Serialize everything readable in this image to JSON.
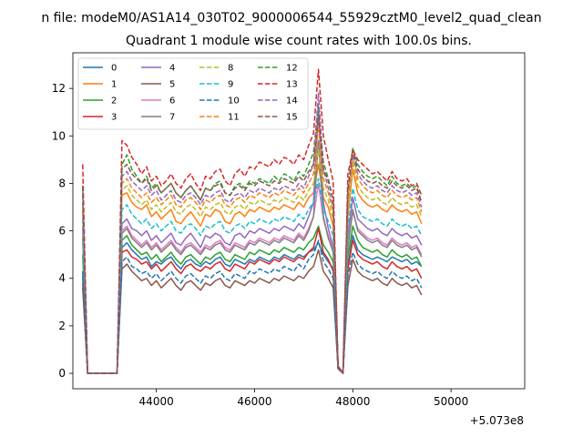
{
  "suptitle": "n file: modeM0/AS1A14_030T02_9000006544_55929cztM0_level2_quad_clean",
  "chart_data": {
    "type": "line",
    "title": "Quadrant 1 module wise count rates with 100.0s bins.",
    "xlabel": "",
    "ylabel": "",
    "x_offset_label": "+5.073e8",
    "xlim": [
      42300,
      51500
    ],
    "ylim": [
      -0.65,
      13.5
    ],
    "xticks": [
      44000,
      46000,
      48000,
      50000
    ],
    "xtick_labels": [
      "44000",
      "46000",
      "48000",
      "50000"
    ],
    "yticks": [
      0,
      2,
      4,
      6,
      8,
      10,
      12
    ],
    "ytick_labels": [
      "0",
      "2",
      "4",
      "6",
      "8",
      "10",
      "12"
    ],
    "grid": false,
    "legend_position": "top-left",
    "x_start": 42500,
    "x_step": 100,
    "series": [
      {
        "name": "0",
        "color": "#1f77b4",
        "dash": "solid",
        "values": [
          4.1,
          0,
          0,
          0,
          0,
          0,
          0,
          0,
          5.3,
          5.5,
          5.2,
          5.0,
          4.8,
          4.9,
          4.5,
          4.7,
          4.6,
          4.8,
          4.9,
          4.6,
          4.4,
          4.7,
          4.8,
          4.6,
          4.5,
          4.7,
          4.6,
          4.8,
          4.9,
          4.6,
          4.5,
          4.8,
          4.7,
          4.6,
          4.8,
          4.7,
          4.9,
          4.8,
          4.7,
          4.9,
          4.8,
          5.0,
          4.9,
          4.8,
          5.0,
          4.9,
          5.1,
          5.2,
          5.5,
          5.0,
          4.7,
          4.4,
          0.2,
          0,
          4.5,
          5.8,
          5.2,
          5.0,
          4.9,
          4.8,
          4.9,
          4.8,
          4.7,
          4.9,
          4.8,
          4.7,
          4.8,
          4.6,
          4.7,
          4.5
        ]
      },
      {
        "name": "1",
        "color": "#ff7f0e",
        "dash": "solid",
        "values": [
          6.8,
          0,
          0,
          0,
          0,
          0,
          0,
          0,
          7.5,
          7.6,
          7.2,
          7.0,
          6.9,
          7.1,
          6.6,
          6.8,
          6.5,
          6.7,
          6.9,
          6.4,
          6.3,
          6.6,
          6.8,
          6.5,
          6.2,
          6.7,
          6.6,
          6.9,
          6.8,
          6.4,
          6.3,
          6.7,
          6.8,
          6.6,
          6.9,
          6.8,
          7.0,
          6.9,
          6.8,
          7.0,
          6.9,
          7.1,
          7.0,
          6.9,
          7.2,
          7.0,
          7.4,
          7.6,
          8.8,
          7.4,
          7.0,
          6.2,
          0.3,
          0,
          6.6,
          8.6,
          7.6,
          7.3,
          7.1,
          7.0,
          7.1,
          6.9,
          6.8,
          7.1,
          6.9,
          6.8,
          6.9,
          6.7,
          6.8,
          6.3
        ]
      },
      {
        "name": "2",
        "color": "#2ca02c",
        "dash": "solid",
        "values": [
          5.0,
          0,
          0,
          0,
          0,
          0,
          0,
          0,
          5.6,
          5.8,
          5.4,
          5.2,
          5.0,
          5.1,
          4.8,
          5.0,
          4.7,
          4.9,
          5.1,
          4.8,
          4.6,
          4.9,
          5.0,
          4.8,
          4.6,
          4.9,
          4.8,
          5.0,
          5.1,
          4.8,
          4.7,
          5.0,
          4.9,
          4.8,
          5.1,
          5.0,
          5.2,
          5.1,
          5.0,
          5.2,
          5.1,
          5.3,
          5.2,
          5.1,
          5.3,
          5.2,
          5.5,
          5.7,
          6.2,
          5.4,
          5.1,
          4.7,
          0.2,
          0,
          4.9,
          6.2,
          5.6,
          5.3,
          5.2,
          5.1,
          5.2,
          5.0,
          4.9,
          5.2,
          5.0,
          4.9,
          5.0,
          4.8,
          4.9,
          4.5
        ]
      },
      {
        "name": "3",
        "color": "#d62728",
        "dash": "solid",
        "values": [
          3.8,
          0,
          0,
          0,
          0,
          0,
          0,
          0,
          5.1,
          5.2,
          4.9,
          4.8,
          4.6,
          4.7,
          4.4,
          4.6,
          4.3,
          4.5,
          4.7,
          4.4,
          4.2,
          4.5,
          4.6,
          4.4,
          4.3,
          4.5,
          4.4,
          4.6,
          4.7,
          4.4,
          4.3,
          4.6,
          4.5,
          4.4,
          4.7,
          4.6,
          4.8,
          4.7,
          4.6,
          4.8,
          4.7,
          4.9,
          4.8,
          4.7,
          4.9,
          4.8,
          5.1,
          5.3,
          6.1,
          5.1,
          4.8,
          4.3,
          0.2,
          0,
          4.4,
          5.6,
          5.0,
          4.8,
          4.7,
          4.6,
          4.7,
          4.5,
          4.4,
          4.7,
          4.5,
          4.4,
          4.5,
          4.3,
          4.4,
          4.0
        ]
      },
      {
        "name": "4",
        "color": "#9467bd",
        "dash": "solid",
        "values": [
          6.2,
          0,
          0,
          0,
          0,
          0,
          0,
          0,
          6.3,
          6.5,
          6.1,
          6.0,
          5.8,
          6.0,
          5.6,
          5.8,
          5.5,
          5.7,
          5.9,
          5.5,
          5.4,
          5.7,
          5.9,
          5.6,
          5.3,
          5.8,
          5.7,
          5.9,
          5.8,
          5.5,
          5.4,
          5.8,
          5.9,
          5.7,
          6.0,
          5.9,
          6.1,
          6.0,
          5.9,
          6.1,
          6.0,
          6.2,
          6.1,
          6.0,
          6.3,
          6.1,
          6.6,
          7.2,
          11.2,
          7.2,
          6.1,
          5.3,
          0.3,
          0,
          5.8,
          7.4,
          6.5,
          6.3,
          6.1,
          6.0,
          6.1,
          5.9,
          5.8,
          6.1,
          5.9,
          5.8,
          5.9,
          5.7,
          5.8,
          5.4
        ]
      },
      {
        "name": "5",
        "color": "#8c564b",
        "dash": "solid",
        "values": [
          3.6,
          0,
          0,
          0,
          0,
          0,
          0,
          0,
          4.4,
          4.6,
          4.3,
          4.1,
          3.9,
          4.0,
          3.7,
          3.9,
          3.6,
          3.8,
          4.0,
          3.7,
          3.5,
          3.8,
          3.9,
          3.7,
          3.5,
          3.8,
          3.7,
          3.9,
          4.0,
          3.7,
          3.6,
          3.9,
          3.8,
          3.7,
          3.9,
          3.8,
          4.0,
          3.9,
          3.8,
          4.0,
          3.9,
          4.1,
          4.0,
          3.9,
          4.1,
          4.0,
          4.3,
          4.5,
          5.2,
          4.3,
          4.0,
          3.6,
          0.2,
          0,
          3.7,
          4.8,
          4.3,
          4.1,
          4.0,
          3.9,
          4.0,
          3.8,
          3.7,
          4.0,
          3.8,
          3.7,
          3.8,
          3.6,
          3.7,
          3.3
        ]
      },
      {
        "name": "6",
        "color": "#e377c2",
        "dash": "solid",
        "values": [
          6.0,
          0,
          0,
          0,
          0,
          0,
          0,
          0,
          6.0,
          6.2,
          5.8,
          5.6,
          5.4,
          5.6,
          5.3,
          5.5,
          5.2,
          5.4,
          5.6,
          5.3,
          5.1,
          5.4,
          5.5,
          5.3,
          5.1,
          5.4,
          5.3,
          5.5,
          5.6,
          5.3,
          5.2,
          5.5,
          5.4,
          5.3,
          5.6,
          5.5,
          5.7,
          5.6,
          5.5,
          5.7,
          5.6,
          5.8,
          5.7,
          5.6,
          5.9,
          5.7,
          6.1,
          6.6,
          8.0,
          6.5,
          5.8,
          5.2,
          0.3,
          0,
          5.4,
          6.8,
          6.1,
          5.9,
          5.7,
          5.6,
          5.7,
          5.5,
          5.4,
          5.7,
          5.5,
          5.4,
          5.5,
          5.3,
          5.4,
          5.0
        ]
      },
      {
        "name": "7",
        "color": "#7f7f7f",
        "dash": "solid",
        "values": [
          5.7,
          0,
          0,
          0,
          0,
          0,
          0,
          0,
          5.9,
          6.1,
          5.7,
          5.5,
          5.3,
          5.5,
          5.2,
          5.4,
          5.1,
          5.3,
          5.5,
          5.2,
          5.0,
          5.3,
          5.4,
          5.2,
          5.0,
          5.3,
          5.2,
          5.4,
          5.5,
          5.2,
          5.1,
          5.4,
          5.3,
          5.2,
          5.5,
          5.4,
          5.6,
          5.5,
          5.4,
          5.6,
          5.5,
          5.7,
          5.6,
          5.5,
          5.8,
          5.6,
          6.0,
          6.6,
          9.8,
          6.6,
          5.7,
          5.1,
          0.3,
          0,
          5.3,
          6.9,
          6.0,
          5.8,
          5.6,
          5.5,
          5.6,
          5.4,
          5.3,
          5.6,
          5.4,
          5.3,
          5.4,
          5.2,
          5.3,
          4.9
        ]
      },
      {
        "name": "8",
        "color": "#bcbd22",
        "dash": "dashed",
        "values": [
          7.0,
          0,
          0,
          0,
          0,
          0,
          0,
          0,
          7.7,
          7.9,
          7.5,
          7.3,
          7.1,
          7.3,
          6.9,
          7.1,
          6.8,
          7.0,
          7.2,
          6.8,
          6.7,
          7.0,
          7.1,
          6.9,
          6.6,
          7.0,
          6.9,
          7.1,
          7.2,
          6.8,
          6.7,
          7.0,
          7.1,
          6.9,
          7.2,
          7.1,
          7.3,
          7.2,
          7.1,
          7.3,
          7.2,
          7.4,
          7.3,
          7.2,
          7.5,
          7.3,
          7.7,
          8.0,
          9.4,
          7.8,
          7.3,
          6.5,
          0.3,
          0,
          6.9,
          8.9,
          7.9,
          7.6,
          7.4,
          7.3,
          7.4,
          7.2,
          7.1,
          7.4,
          7.2,
          7.1,
          7.2,
          7.0,
          7.1,
          6.6
        ]
      },
      {
        "name": "9",
        "color": "#17becf",
        "dash": "dashed",
        "values": [
          6.5,
          0,
          0,
          0,
          0,
          0,
          0,
          0,
          6.9,
          7.1,
          6.7,
          6.5,
          6.3,
          6.5,
          6.1,
          6.3,
          6.0,
          6.2,
          6.4,
          6.0,
          5.9,
          6.2,
          6.3,
          6.1,
          5.8,
          6.2,
          6.1,
          6.3,
          6.4,
          6.0,
          5.9,
          6.2,
          6.3,
          6.1,
          6.4,
          6.3,
          6.5,
          6.4,
          6.3,
          6.5,
          6.4,
          6.6,
          6.5,
          6.4,
          6.7,
          6.5,
          6.9,
          7.2,
          8.2,
          6.9,
          6.4,
          5.8,
          0.3,
          0,
          6.1,
          7.8,
          6.9,
          6.6,
          6.5,
          6.4,
          6.5,
          6.3,
          6.2,
          6.5,
          6.3,
          6.2,
          6.3,
          6.1,
          6.2,
          5.8
        ]
      },
      {
        "name": "10",
        "color": "#1f77b4",
        "dash": "dashed",
        "values": [
          4.3,
          0,
          0,
          0,
          0,
          0,
          0,
          0,
          4.7,
          4.9,
          4.5,
          4.4,
          4.2,
          4.3,
          4.0,
          4.2,
          3.9,
          4.1,
          4.3,
          4.0,
          3.8,
          4.1,
          4.2,
          4.0,
          3.8,
          4.1,
          4.0,
          4.2,
          4.3,
          4.0,
          3.9,
          4.2,
          4.1,
          4.0,
          4.3,
          4.2,
          4.4,
          4.3,
          4.2,
          4.4,
          4.3,
          4.5,
          4.4,
          4.3,
          4.6,
          4.4,
          4.8,
          5.0,
          5.6,
          4.7,
          4.4,
          4.0,
          0.2,
          0,
          4.1,
          5.1,
          4.6,
          4.4,
          4.3,
          4.2,
          4.3,
          4.1,
          4.0,
          4.3,
          4.1,
          4.0,
          4.1,
          3.9,
          4.0,
          3.6
        ]
      },
      {
        "name": "11",
        "color": "#ff7f0e",
        "dash": "dashed",
        "values": [
          7.2,
          0,
          0,
          0,
          0,
          0,
          0,
          0,
          8.0,
          8.2,
          7.8,
          7.6,
          7.4,
          7.6,
          7.2,
          7.4,
          7.1,
          7.3,
          7.5,
          7.1,
          7.0,
          7.3,
          7.4,
          7.2,
          6.9,
          7.3,
          7.2,
          7.4,
          7.5,
          7.1,
          7.0,
          7.3,
          7.4,
          7.2,
          7.5,
          7.4,
          7.6,
          7.5,
          7.4,
          7.6,
          7.5,
          7.7,
          7.6,
          7.5,
          7.8,
          7.6,
          8.0,
          8.4,
          10.4,
          8.2,
          7.6,
          6.8,
          0.3,
          0,
          7.2,
          9.2,
          8.2,
          7.9,
          7.7,
          7.6,
          7.7,
          7.5,
          7.4,
          7.7,
          7.5,
          7.4,
          7.5,
          7.3,
          7.4,
          6.8
        ]
      },
      {
        "name": "12",
        "color": "#2ca02c",
        "dash": "dashed",
        "values": [
          7.8,
          0,
          0,
          0,
          0,
          0,
          0,
          0,
          8.8,
          9.2,
          8.6,
          8.3,
          8.0,
          8.3,
          7.8,
          8.0,
          7.6,
          7.8,
          8.0,
          7.6,
          7.4,
          7.7,
          7.9,
          7.6,
          7.3,
          7.8,
          7.7,
          8.0,
          8.1,
          7.6,
          7.5,
          7.9,
          8.0,
          7.8,
          8.1,
          8.0,
          8.2,
          8.1,
          8.0,
          8.3,
          8.1,
          8.4,
          8.3,
          8.1,
          8.5,
          8.3,
          8.8,
          9.3,
          11.3,
          8.9,
          8.2,
          7.3,
          0.3,
          0,
          7.8,
          9.5,
          8.8,
          8.5,
          8.3,
          8.2,
          8.3,
          8.1,
          7.9,
          8.3,
          8.0,
          7.9,
          8.0,
          7.8,
          7.9,
          7.2
        ]
      },
      {
        "name": "13",
        "color": "#d62728",
        "dash": "dashed",
        "values": [
          8.8,
          0,
          0,
          0,
          0,
          0,
          0,
          0,
          9.8,
          9.6,
          9.1,
          8.8,
          8.4,
          8.7,
          8.1,
          8.3,
          7.9,
          8.1,
          8.4,
          8.0,
          7.8,
          8.2,
          8.4,
          8.0,
          7.7,
          8.3,
          8.2,
          8.5,
          8.6,
          8.1,
          7.9,
          8.4,
          8.6,
          8.3,
          8.7,
          8.6,
          8.9,
          8.8,
          8.7,
          9.0,
          8.8,
          9.1,
          9.0,
          8.8,
          9.2,
          9.0,
          9.6,
          10.1,
          12.8,
          10.0,
          9.0,
          8.1,
          0.3,
          0,
          8.4,
          9.4,
          9.0,
          8.8,
          8.6,
          8.4,
          8.5,
          8.3,
          8.1,
          8.5,
          8.2,
          8.1,
          8.2,
          7.9,
          8.0,
          7.5
        ]
      },
      {
        "name": "14",
        "color": "#9467bd",
        "dash": "dashed",
        "values": [
          7.5,
          0,
          0,
          0,
          0,
          0,
          0,
          0,
          8.3,
          8.5,
          8.1,
          7.9,
          7.7,
          7.9,
          7.5,
          7.7,
          7.3,
          7.5,
          7.7,
          7.3,
          7.2,
          7.5,
          7.6,
          7.4,
          7.1,
          7.5,
          7.4,
          7.6,
          7.7,
          7.3,
          7.2,
          7.5,
          7.6,
          7.4,
          7.7,
          7.6,
          7.8,
          7.7,
          7.6,
          7.8,
          7.7,
          7.9,
          7.8,
          7.7,
          8.0,
          7.8,
          8.3,
          8.8,
          11.8,
          8.6,
          7.8,
          7.0,
          0.3,
          0,
          7.5,
          9.2,
          8.4,
          8.1,
          7.9,
          7.8,
          7.9,
          7.7,
          7.6,
          7.9,
          7.7,
          7.6,
          7.7,
          7.5,
          7.6,
          7.0
        ]
      },
      {
        "name": "15",
        "color": "#8c564b",
        "dash": "dashed",
        "values": [
          7.9,
          0,
          0,
          0,
          0,
          0,
          0,
          0,
          8.6,
          8.8,
          8.4,
          8.2,
          8.0,
          8.2,
          7.7,
          7.9,
          7.6,
          7.8,
          8.0,
          7.6,
          7.4,
          7.7,
          7.9,
          7.6,
          7.3,
          7.8,
          7.7,
          7.9,
          8.0,
          7.6,
          7.5,
          7.8,
          7.9,
          7.7,
          8.0,
          7.9,
          8.1,
          8.0,
          7.9,
          8.1,
          8.0,
          8.2,
          8.1,
          8.0,
          8.3,
          8.1,
          8.5,
          8.8,
          10.8,
          8.6,
          8.1,
          7.3,
          0.3,
          0,
          7.8,
          9.4,
          8.6,
          8.3,
          8.1,
          8.0,
          8.1,
          7.9,
          7.8,
          8.1,
          7.9,
          7.8,
          7.9,
          7.7,
          7.8,
          7.2
        ]
      }
    ]
  }
}
